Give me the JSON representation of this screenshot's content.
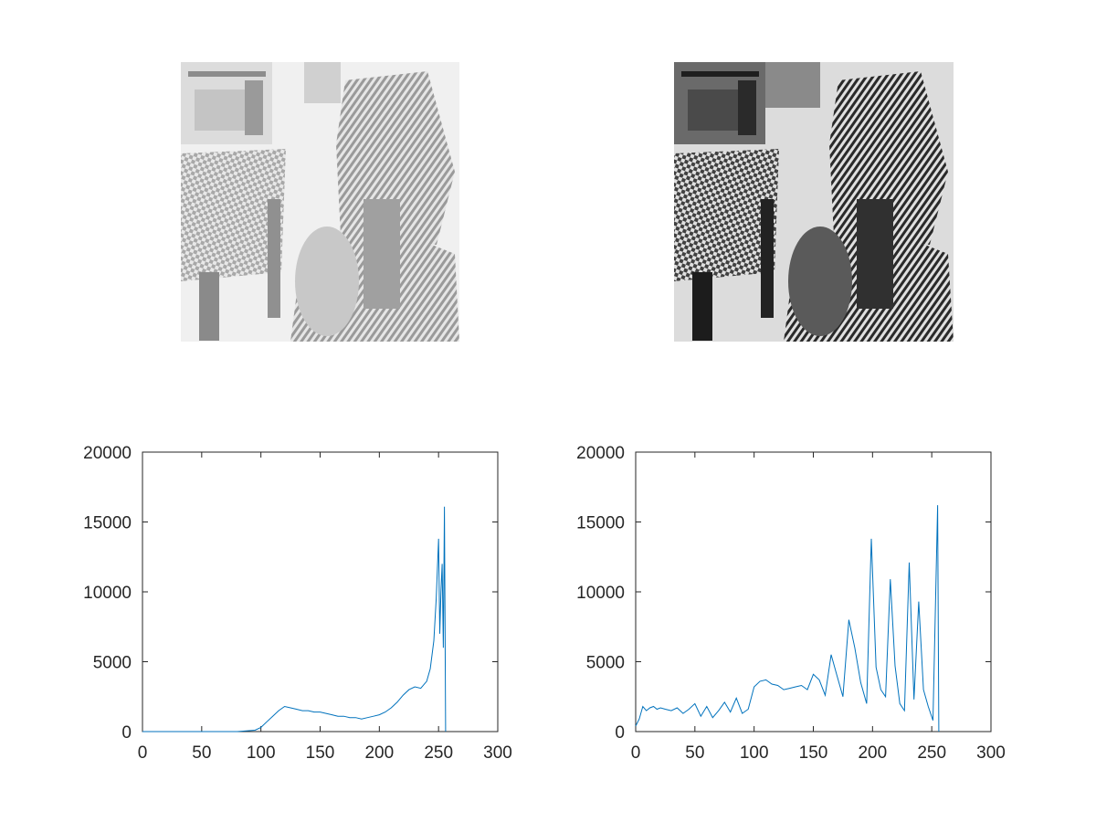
{
  "images": [
    {
      "name": "original-image",
      "tone": "low-contrast"
    },
    {
      "name": "equalized-image",
      "tone": "high-contrast"
    }
  ],
  "colors": {
    "series": "#0072bd",
    "axis": "#262626",
    "background": "#ffffff"
  },
  "chart_data": [
    {
      "type": "line",
      "title": "",
      "xlabel": "",
      "ylabel": "",
      "xlim": [
        0,
        300
      ],
      "ylim": [
        0,
        20000
      ],
      "xticks": [
        0,
        50,
        100,
        150,
        200,
        250,
        300
      ],
      "yticks": [
        0,
        5000,
        10000,
        15000,
        20000
      ],
      "grid": false,
      "series": [
        {
          "x": [
            0,
            50,
            80,
            95,
            100,
            105,
            110,
            115,
            120,
            125,
            130,
            135,
            140,
            145,
            150,
            155,
            160,
            165,
            170,
            175,
            180,
            185,
            190,
            195,
            200,
            205,
            210,
            215,
            220,
            225,
            230,
            235,
            240,
            243,
            246,
            248,
            250,
            251,
            252,
            253,
            254,
            255,
            256
          ],
          "y": [
            0,
            0,
            0,
            100,
            300,
            700,
            1100,
            1500,
            1800,
            1700,
            1600,
            1500,
            1500,
            1400,
            1400,
            1300,
            1200,
            1100,
            1100,
            1000,
            1000,
            900,
            1000,
            1100,
            1200,
            1400,
            1700,
            2100,
            2600,
            3000,
            3200,
            3100,
            3600,
            4500,
            6500,
            9500,
            13800,
            7000,
            10000,
            12000,
            6000,
            16100,
            0
          ]
        }
      ]
    },
    {
      "type": "line",
      "title": "",
      "xlabel": "",
      "ylabel": "",
      "xlim": [
        0,
        300
      ],
      "ylim": [
        0,
        20000
      ],
      "xticks": [
        0,
        50,
        100,
        150,
        200,
        250,
        300
      ],
      "yticks": [
        0,
        5000,
        10000,
        15000,
        20000
      ],
      "grid": false,
      "series": [
        {
          "x": [
            0,
            3,
            6,
            9,
            12,
            15,
            18,
            21,
            25,
            30,
            35,
            40,
            45,
            50,
            55,
            60,
            65,
            70,
            75,
            80,
            85,
            90,
            95,
            100,
            105,
            110,
            115,
            120,
            125,
            130,
            135,
            140,
            145,
            150,
            155,
            160,
            165,
            170,
            175,
            180,
            185,
            190,
            195,
            199,
            203,
            207,
            211,
            215,
            219,
            223,
            227,
            231,
            235,
            239,
            243,
            247,
            251,
            255,
            256
          ],
          "y": [
            400,
            900,
            1800,
            1500,
            1700,
            1800,
            1600,
            1700,
            1600,
            1500,
            1700,
            1300,
            1600,
            2000,
            1100,
            1800,
            1000,
            1500,
            2100,
            1400,
            2400,
            1300,
            1600,
            3200,
            3600,
            3700,
            3400,
            3300,
            3000,
            3100,
            3200,
            3300,
            3000,
            4100,
            3700,
            2600,
            5500,
            4000,
            2500,
            8000,
            6000,
            3500,
            2000,
            13800,
            4600,
            3000,
            2500,
            10900,
            4700,
            2000,
            1500,
            12100,
            2300,
            9300,
            3000,
            1800,
            800,
            16200,
            0
          ]
        }
      ]
    }
  ]
}
